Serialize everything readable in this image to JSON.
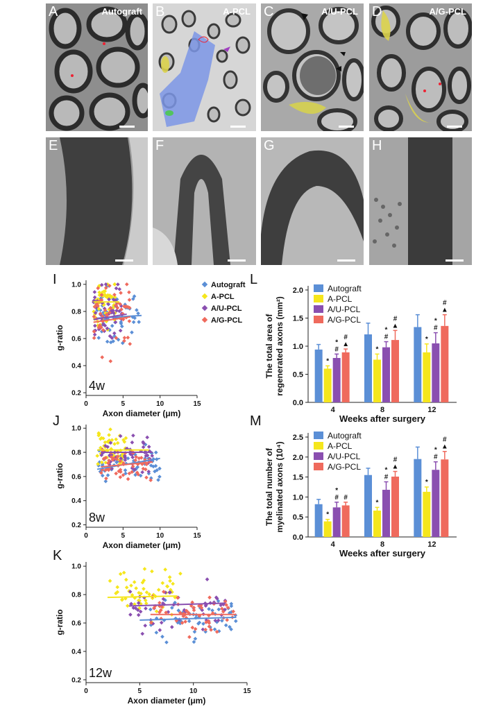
{
  "micrographs": {
    "panels": [
      {
        "letter": "A",
        "tag": "Autograft"
      },
      {
        "letter": "B",
        "tag": "A-PCL"
      },
      {
        "letter": "C",
        "tag": "A/U-PCL"
      },
      {
        "letter": "D",
        "tag": "A/G-PCL"
      },
      {
        "letter": "E",
        "tag": ""
      },
      {
        "letter": "F",
        "tag": ""
      },
      {
        "letter": "G",
        "tag": ""
      },
      {
        "letter": "H",
        "tag": ""
      }
    ]
  },
  "colors": {
    "autograft": "#5b8fd6",
    "apcl": "#f5e61c",
    "aupcl": "#8a4fb0",
    "agpcl": "#ef6a5d"
  },
  "chart_data": [
    {
      "id": "I",
      "type": "scatter",
      "panel_letter": "I",
      "annotation": "4w",
      "xlabel": "Axon diameter (μm)",
      "ylabel": "g-ratio",
      "xlim": [
        0,
        15
      ],
      "ylim": [
        0.18,
        1.03
      ],
      "xticks": [
        "0",
        "5",
        "10",
        "15"
      ],
      "yticks": [
        "0.2",
        "0.4",
        "0.6",
        "0.8",
        "1.0"
      ],
      "legend": [
        "Autograft",
        "A-PCL",
        "A/U-PCL",
        "A/G-PCL"
      ],
      "legend_position": "top-right",
      "series": [
        {
          "name": "Autograft",
          "x_range": [
            1.5,
            7.5
          ],
          "y_mean": 0.76,
          "y_sd": 0.1,
          "fit": [
            [
              1.5,
              0.75
            ],
            [
              7.5,
              0.77
            ]
          ]
        },
        {
          "name": "A-PCL",
          "x_range": [
            1,
            4
          ],
          "y_mean": 0.87,
          "y_sd": 0.07,
          "fit": [
            [
              1,
              0.87
            ],
            [
              4.5,
              0.87
            ]
          ]
        },
        {
          "name": "A/U-PCL",
          "x_range": [
            1,
            5
          ],
          "y_mean": 0.79,
          "y_sd": 0.1,
          "fit": [
            [
              1,
              0.74
            ],
            [
              5.5,
              0.78
            ]
          ]
        },
        {
          "name": "A/G-PCL",
          "x_range": [
            1,
            6
          ],
          "y_mean": 0.77,
          "y_sd": 0.11,
          "fit": [
            [
              1,
              0.72
            ],
            [
              6,
              0.76
            ]
          ]
        }
      ]
    },
    {
      "id": "J",
      "type": "scatter",
      "panel_letter": "J",
      "annotation": "8w",
      "xlabel": "Axon diameter (μm)",
      "ylabel": "g-ratio",
      "xlim": [
        0,
        15
      ],
      "ylim": [
        0.18,
        1.03
      ],
      "xticks": [
        "0",
        "5",
        "10",
        "15"
      ],
      "yticks": [
        "0.2",
        "0.4",
        "0.6",
        "0.8",
        "1.0"
      ],
      "series": [
        {
          "name": "Autograft",
          "x_range": [
            1.5,
            10
          ],
          "y_mean": 0.72,
          "y_sd": 0.07,
          "fit": [
            [
              1.5,
              0.66
            ],
            [
              10,
              0.75
            ]
          ]
        },
        {
          "name": "A-PCL",
          "x_range": [
            1.5,
            5.5
          ],
          "y_mean": 0.83,
          "y_sd": 0.07,
          "fit": [
            [
              1.5,
              0.82
            ],
            [
              8.5,
              0.82
            ]
          ]
        },
        {
          "name": "A/U-PCL",
          "x_range": [
            2,
            9
          ],
          "y_mean": 0.79,
          "y_sd": 0.07,
          "fit": [
            [
              2,
              0.8
            ],
            [
              9,
              0.8
            ]
          ]
        },
        {
          "name": "A/G-PCL",
          "x_range": [
            2,
            9
          ],
          "y_mean": 0.71,
          "y_sd": 0.07,
          "fit": [
            [
              2,
              0.68
            ],
            [
              9,
              0.72
            ]
          ]
        }
      ]
    },
    {
      "id": "K",
      "type": "scatter",
      "panel_letter": "K",
      "annotation": "12w",
      "xlabel": "Axon diameter (μm)",
      "ylabel": "g-ratio",
      "xlim": [
        0,
        15
      ],
      "ylim": [
        0.18,
        1.03
      ],
      "xticks": [
        "0",
        "5",
        "10",
        "15"
      ],
      "yticks": [
        "0.2",
        "0.4",
        "0.6",
        "0.8",
        "1.0"
      ],
      "series": [
        {
          "name": "Autograft",
          "x_range": [
            6,
            14
          ],
          "y_mean": 0.62,
          "y_sd": 0.08,
          "fit": [
            [
              5,
              0.62
            ],
            [
              14,
              0.64
            ]
          ]
        },
        {
          "name": "A-PCL",
          "x_range": [
            2,
            9
          ],
          "y_mean": 0.79,
          "y_sd": 0.08,
          "fit": [
            [
              2,
              0.78
            ],
            [
              8.5,
              0.79
            ]
          ]
        },
        {
          "name": "A/U-PCL",
          "x_range": [
            4,
            13
          ],
          "y_mean": 0.71,
          "y_sd": 0.08,
          "fit": [
            [
              4,
              0.72
            ],
            [
              13,
              0.74
            ]
          ]
        },
        {
          "name": "A/G-PCL",
          "x_range": [
            6,
            14
          ],
          "y_mean": 0.66,
          "y_sd": 0.07,
          "fit": [
            [
              6,
              0.66
            ],
            [
              14,
              0.66
            ]
          ]
        }
      ]
    },
    {
      "id": "L",
      "type": "bar",
      "panel_letter": "L",
      "ylabel": "The total area of regenerated axons (mm²)",
      "xlabel": "Weeks after surgery",
      "categories": [
        "4",
        "8",
        "12"
      ],
      "ylim": [
        0,
        2.0
      ],
      "yticks": [
        "0.0",
        "0.5",
        "1.0",
        "1.5",
        "2.0"
      ],
      "legend": [
        "Autograft",
        "A-PCL",
        "A/U-PCL",
        "A/G-PCL"
      ],
      "legend_position": "top-left",
      "series": [
        {
          "name": "Autograft",
          "values": [
            0.94,
            1.21,
            1.34
          ],
          "errors": [
            0.09,
            0.2,
            0.22
          ],
          "marks": [
            "",
            "",
            ""
          ]
        },
        {
          "name": "A-PCL",
          "values": [
            0.6,
            0.76,
            0.89
          ],
          "errors": [
            0.05,
            0.1,
            0.15
          ],
          "marks": [
            "*",
            "*",
            "*"
          ]
        },
        {
          "name": "A/U-PCL",
          "values": [
            0.79,
            0.98,
            1.05
          ],
          "errors": [
            0.07,
            0.1,
            0.19
          ],
          "marks": [
            "*\n#",
            "*\n#",
            "*\n#"
          ]
        },
        {
          "name": "A/G-PCL",
          "values": [
            0.89,
            1.11,
            1.36
          ],
          "errors": [
            0.06,
            0.17,
            0.2
          ],
          "marks": [
            "#\n▲",
            "#\n▲",
            "#\n▲"
          ]
        }
      ]
    },
    {
      "id": "M",
      "type": "bar",
      "panel_letter": "M",
      "ylabel": "The total number of myelinated axons (10⁴)",
      "xlabel": "Weeks after surgery",
      "categories": [
        "4",
        "8",
        "12"
      ],
      "ylim": [
        0,
        2.5
      ],
      "yticks": [
        "0.0",
        "0.5",
        "1.0",
        "1.5",
        "2.0",
        "2.5"
      ],
      "legend": [
        "Autograft",
        "A-PCL",
        "A/U-PCL",
        "A/G-PCL"
      ],
      "legend_position": "top-left",
      "series": [
        {
          "name": "Autograft",
          "values": [
            0.82,
            1.55,
            1.95
          ],
          "errors": [
            0.12,
            0.17,
            0.3
          ],
          "marks": [
            "",
            "",
            ""
          ]
        },
        {
          "name": "A-PCL",
          "values": [
            0.39,
            0.66,
            1.13
          ],
          "errors": [
            0.05,
            0.08,
            0.12
          ],
          "marks": [
            "*",
            "*",
            "*"
          ]
        },
        {
          "name": "A/U-PCL",
          "values": [
            0.74,
            1.18,
            1.68
          ],
          "errors": [
            0.13,
            0.2,
            0.2
          ],
          "marks": [
            "*\n#",
            "*\n#",
            "*\n#"
          ]
        },
        {
          "name": "A/G-PCL",
          "values": [
            0.79,
            1.51,
            1.94
          ],
          "errors": [
            0.08,
            0.13,
            0.2
          ],
          "marks": [
            "#",
            "#\n▲",
            "#\n▲"
          ]
        }
      ]
    }
  ]
}
